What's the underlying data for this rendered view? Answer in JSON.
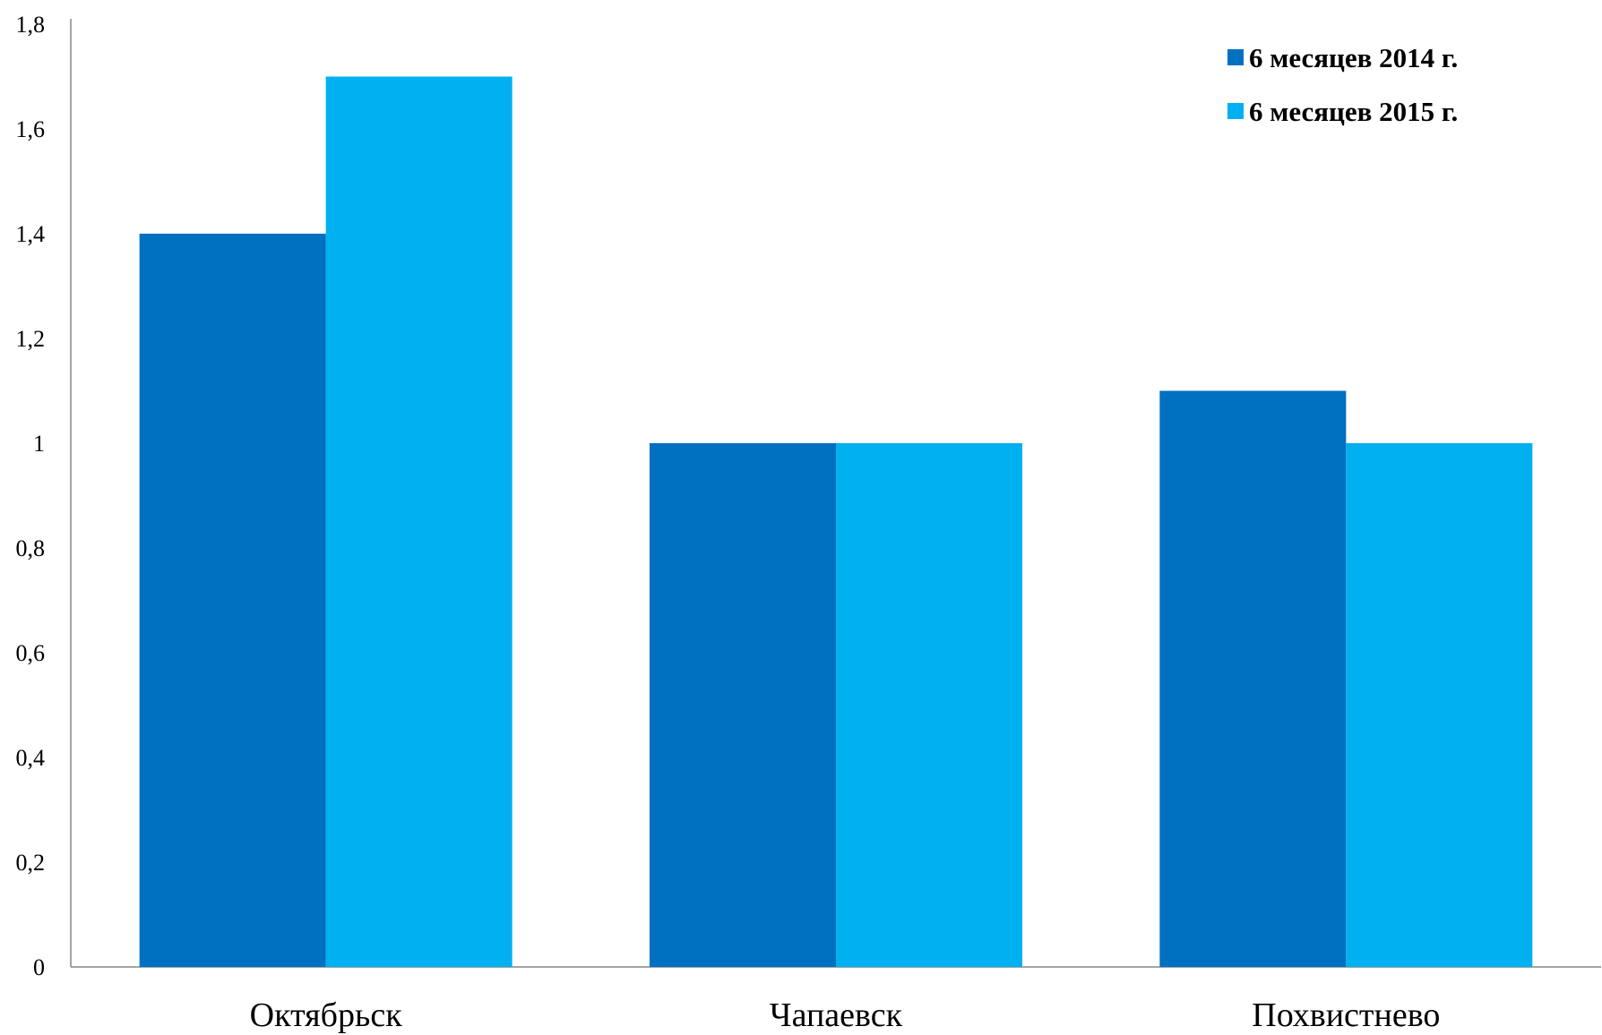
{
  "chart_data": {
    "type": "bar",
    "categories": [
      "Октябрьск",
      "Чапаевск",
      "Похвистнево"
    ],
    "series": [
      {
        "name": "6 месяцев 2014 г.",
        "values": [
          1.4,
          1.0,
          1.1
        ],
        "color": "#0070C0"
      },
      {
        "name": "6 месяцев 2015 г.",
        "values": [
          1.7,
          1.0,
          1.0
        ],
        "color": "#00B0F0"
      }
    ],
    "yticks": [
      "0",
      "0,2",
      "0,4",
      "0,6",
      "0,8",
      "1",
      "1,2",
      "1,4",
      "1,6",
      "1,8"
    ],
    "ylim": [
      0,
      1.8
    ],
    "grid": false,
    "legend_position": "top-right",
    "axis_color": "#868686"
  }
}
